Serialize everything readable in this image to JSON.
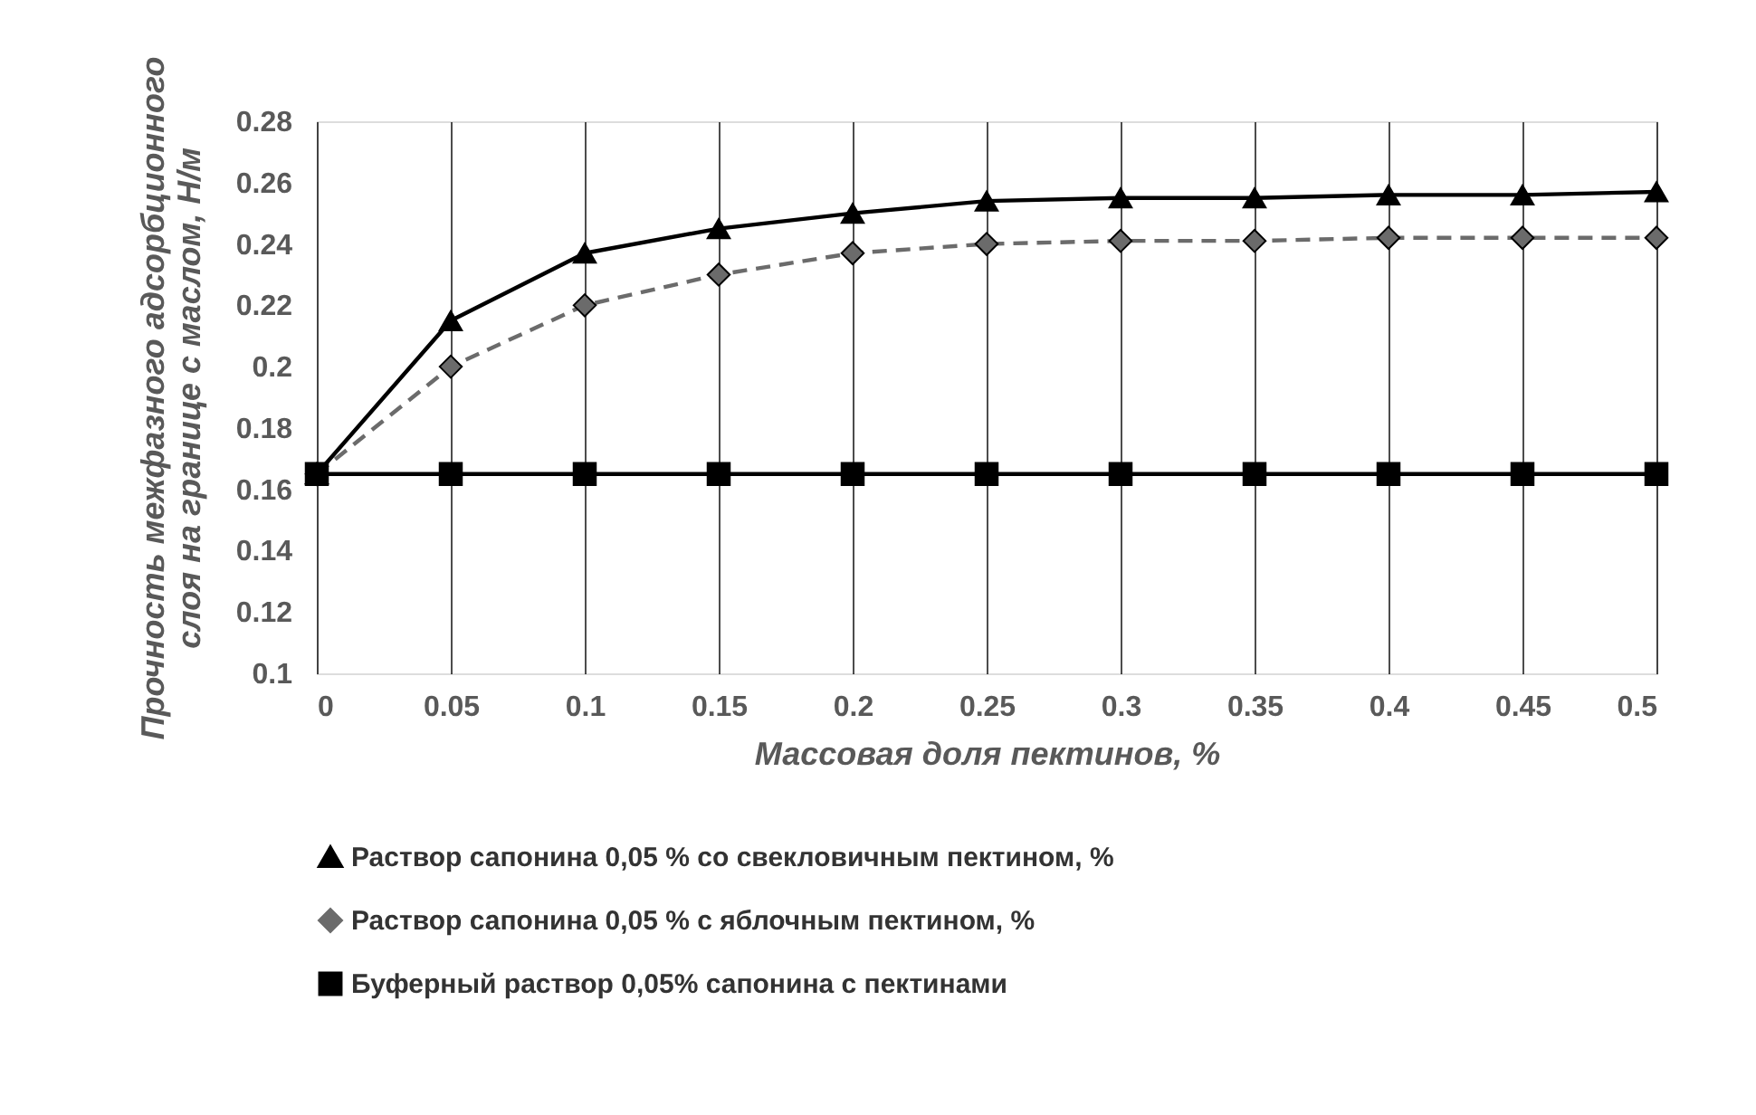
{
  "chart_data": {
    "type": "line",
    "xlabel": "Массовая доля пектинов, %",
    "ylabel": "Прочность межфазного адсорбционного слоя на границе с маслом, Н/м",
    "x": [
      0,
      0.05,
      0.1,
      0.15,
      0.2,
      0.25,
      0.3,
      0.35,
      0.4,
      0.45,
      0.5
    ],
    "series": [
      {
        "name": "Раствор сапонина 0,05 % со свекловичным пектином, %",
        "color": "#000000",
        "marker": "triangle",
        "line_style": "solid",
        "values": [
          0.165,
          0.215,
          0.237,
          0.245,
          0.25,
          0.254,
          0.255,
          0.255,
          0.256,
          0.256,
          0.257
        ]
      },
      {
        "name": "Раствор сапонина 0,05 % с яблочным пектином, %",
        "color": "#6b6b6b",
        "marker": "diamond",
        "line_style": "dashed",
        "values": [
          0.165,
          0.2,
          0.22,
          0.23,
          0.237,
          0.24,
          0.241,
          0.241,
          0.242,
          0.242,
          0.242
        ]
      },
      {
        "name": "Буферный раствор 0,05% сапонина с пектинами",
        "color": "#000000",
        "marker": "square",
        "line_style": "solid",
        "values": [
          0.165,
          0.165,
          0.165,
          0.165,
          0.165,
          0.165,
          0.165,
          0.165,
          0.165,
          0.165,
          0.165
        ]
      }
    ],
    "xlim": [
      0,
      0.5
    ],
    "xticks": [
      0,
      0.05,
      0.1,
      0.15,
      0.2,
      0.25,
      0.3,
      0.35,
      0.4,
      0.45,
      0.5
    ],
    "ylim": [
      0.1,
      0.28
    ],
    "yticks": [
      0.1,
      0.12,
      0.14,
      0.16,
      0.18,
      0.2,
      0.22,
      0.24,
      0.26,
      0.28
    ],
    "grid": "x",
    "legend": "bottom"
  }
}
